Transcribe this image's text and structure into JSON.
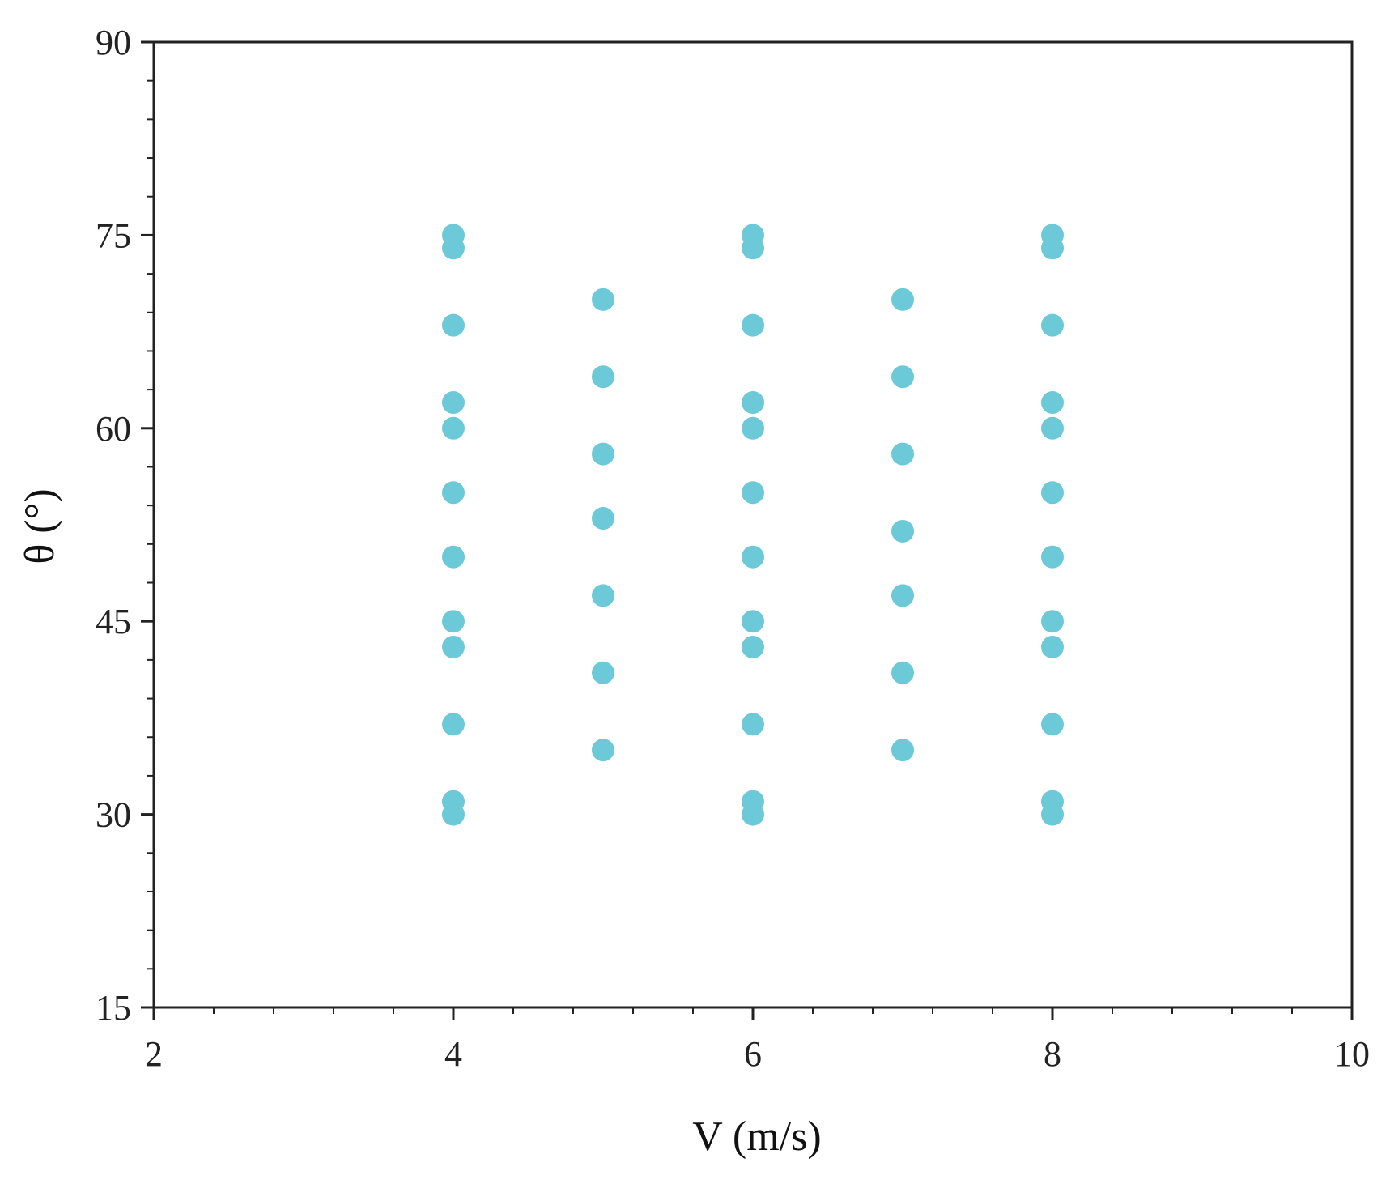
{
  "chart_data": {
    "type": "scatter",
    "title": "",
    "xlabel": "V (m/s)",
    "ylabel": "θ (°)",
    "xlim": [
      2,
      10
    ],
    "ylim": [
      15,
      90
    ],
    "x_ticks": [
      2,
      4,
      6,
      8,
      10
    ],
    "y_ticks": [
      15,
      30,
      45,
      60,
      75,
      90
    ],
    "x_minor_step": 0.4,
    "y_minor_step": 3,
    "grid": false,
    "legend": "none",
    "marker_color": "#6cc9d8",
    "axis_color": "#222222",
    "series": [
      {
        "points": [
          [
            4,
            30
          ],
          [
            4,
            31
          ],
          [
            4,
            37
          ],
          [
            4,
            43
          ],
          [
            4,
            45
          ],
          [
            4,
            50
          ],
          [
            4,
            55
          ],
          [
            4,
            60
          ],
          [
            4,
            62
          ],
          [
            4,
            68
          ],
          [
            4,
            74
          ],
          [
            4,
            75
          ],
          [
            5,
            35
          ],
          [
            5,
            41
          ],
          [
            5,
            47
          ],
          [
            5,
            53
          ],
          [
            5,
            58
          ],
          [
            5,
            64
          ],
          [
            5,
            70
          ],
          [
            6,
            30
          ],
          [
            6,
            31
          ],
          [
            6,
            37
          ],
          [
            6,
            43
          ],
          [
            6,
            45
          ],
          [
            6,
            50
          ],
          [
            6,
            55
          ],
          [
            6,
            60
          ],
          [
            6,
            62
          ],
          [
            6,
            68
          ],
          [
            6,
            74
          ],
          [
            6,
            75
          ],
          [
            7,
            35
          ],
          [
            7,
            41
          ],
          [
            7,
            47
          ],
          [
            7,
            52
          ],
          [
            7,
            58
          ],
          [
            7,
            64
          ],
          [
            7,
            70
          ],
          [
            8,
            30
          ],
          [
            8,
            31
          ],
          [
            8,
            37
          ],
          [
            8,
            43
          ],
          [
            8,
            45
          ],
          [
            8,
            50
          ],
          [
            8,
            55
          ],
          [
            8,
            60
          ],
          [
            8,
            62
          ],
          [
            8,
            68
          ],
          [
            8,
            74
          ],
          [
            8,
            75
          ]
        ]
      }
    ]
  }
}
